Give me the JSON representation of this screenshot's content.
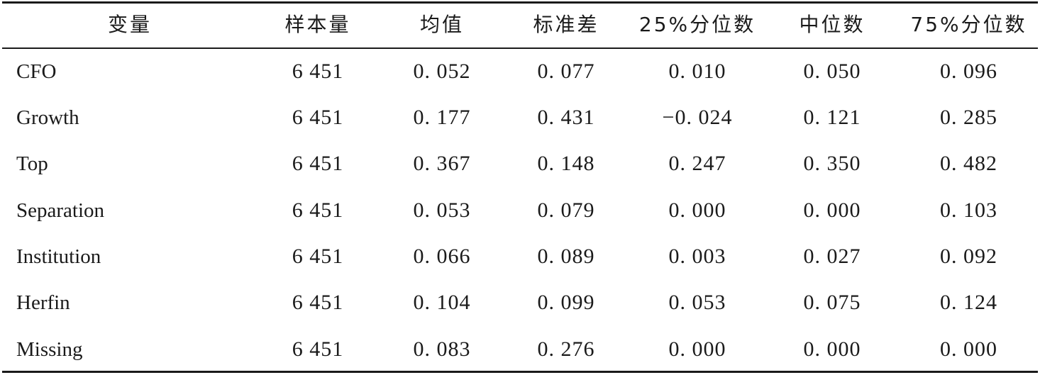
{
  "table": {
    "headers": [
      "变量",
      "样本量",
      "均值",
      "标准差",
      "25%分位数",
      "中位数",
      "75%分位数"
    ],
    "rows": [
      [
        "CFO",
        "6 451",
        "0. 052",
        "0. 077",
        "0. 010",
        "0. 050",
        "0. 096"
      ],
      [
        "Growth",
        "6 451",
        "0. 177",
        "0. 431",
        "−0. 024",
        "0. 121",
        "0. 285"
      ],
      [
        "Top",
        "6 451",
        "0. 367",
        "0. 148",
        "0. 247",
        "0. 350",
        "0. 482"
      ],
      [
        "Separation",
        "6 451",
        "0. 053",
        "0. 079",
        "0. 000",
        "0. 000",
        "0. 103"
      ],
      [
        "Institution",
        "6 451",
        "0. 066",
        "0. 089",
        "0. 003",
        "0. 027",
        "0. 092"
      ],
      [
        "Herfin",
        "6 451",
        "0. 104",
        "0. 099",
        "0. 053",
        "0. 075",
        "0. 124"
      ],
      [
        "Missing",
        "6 451",
        "0. 083",
        "0. 276",
        "0. 000",
        "0. 000",
        "0. 000"
      ]
    ]
  }
}
